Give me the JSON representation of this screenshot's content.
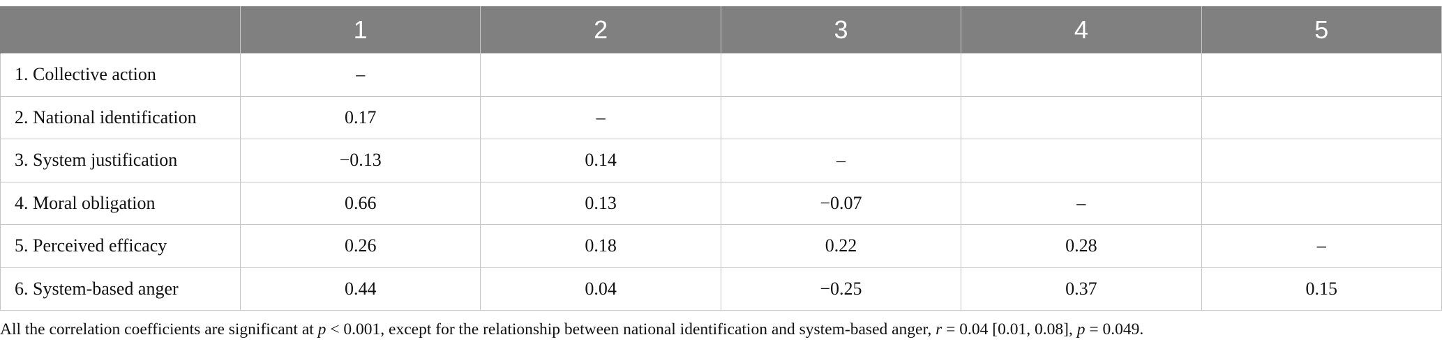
{
  "table": {
    "header": [
      "",
      "1",
      "2",
      "3",
      "4",
      "5"
    ],
    "rows": [
      {
        "label": "1. Collective action",
        "cells": [
          "–",
          "",
          "",
          "",
          ""
        ]
      },
      {
        "label": "2. National identification",
        "cells": [
          "0.17",
          "–",
          "",
          "",
          ""
        ]
      },
      {
        "label": "3. System justification",
        "cells": [
          "−0.13",
          "0.14",
          "–",
          "",
          ""
        ]
      },
      {
        "label": "4. Moral obligation",
        "cells": [
          "0.66",
          "0.13",
          "−0.07",
          "–",
          ""
        ]
      },
      {
        "label": "5. Perceived efficacy",
        "cells": [
          "0.26",
          "0.18",
          "0.22",
          "0.28",
          "–"
        ]
      },
      {
        "label": "6. System-based anger",
        "cells": [
          "0.44",
          "0.04",
          "−0.25",
          "0.37",
          "0.15"
        ]
      }
    ]
  },
  "footnote": {
    "part1": "All the correlation coefficients are significant at ",
    "p1": "p",
    "part2": " < 0.001, except for the relationship between national identification and system-based anger, ",
    "r": "r",
    "part3": " = 0.04 [0.01, 0.08], ",
    "p2": "p",
    "part4": " = 0.049."
  }
}
